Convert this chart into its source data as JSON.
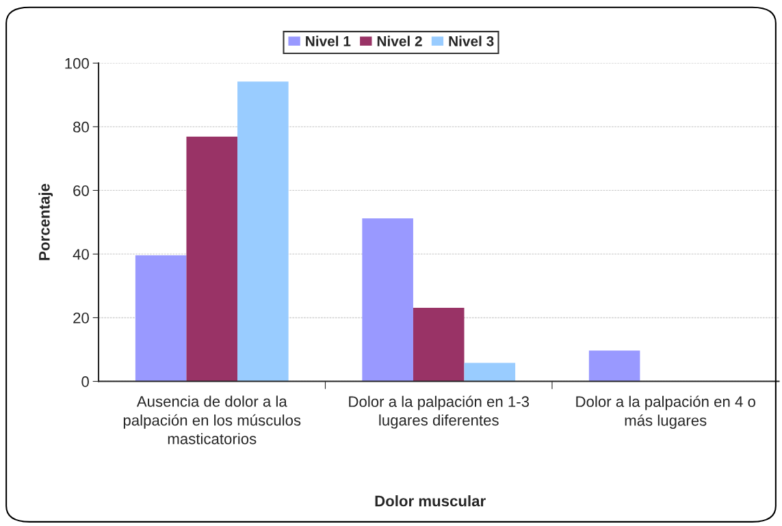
{
  "chart_data": {
    "type": "bar",
    "xlabel": "Dolor muscular",
    "ylabel": "Porcentaje",
    "categories": [
      "Ausencia de dolor a la palpación en los músculos masticatorios",
      "Dolor a la palpación en 1-3 lugares diferentes",
      "Dolor a la palpación en 4 o más lugares"
    ],
    "series": [
      {
        "name": "Nivel 1",
        "color": "#9999ff",
        "values": [
          39.6,
          51.2,
          9.7
        ]
      },
      {
        "name": "Nivel 2",
        "color": "#993366",
        "values": [
          76.9,
          23.1,
          0
        ]
      },
      {
        "name": "Nivel 3",
        "color": "#99ccff",
        "values": [
          94.2,
          5.8,
          0
        ]
      }
    ],
    "ylim": [
      0,
      100
    ],
    "yticks": [
      0,
      20,
      40,
      60,
      80,
      100
    ],
    "grid": "y",
    "legend": "top"
  }
}
